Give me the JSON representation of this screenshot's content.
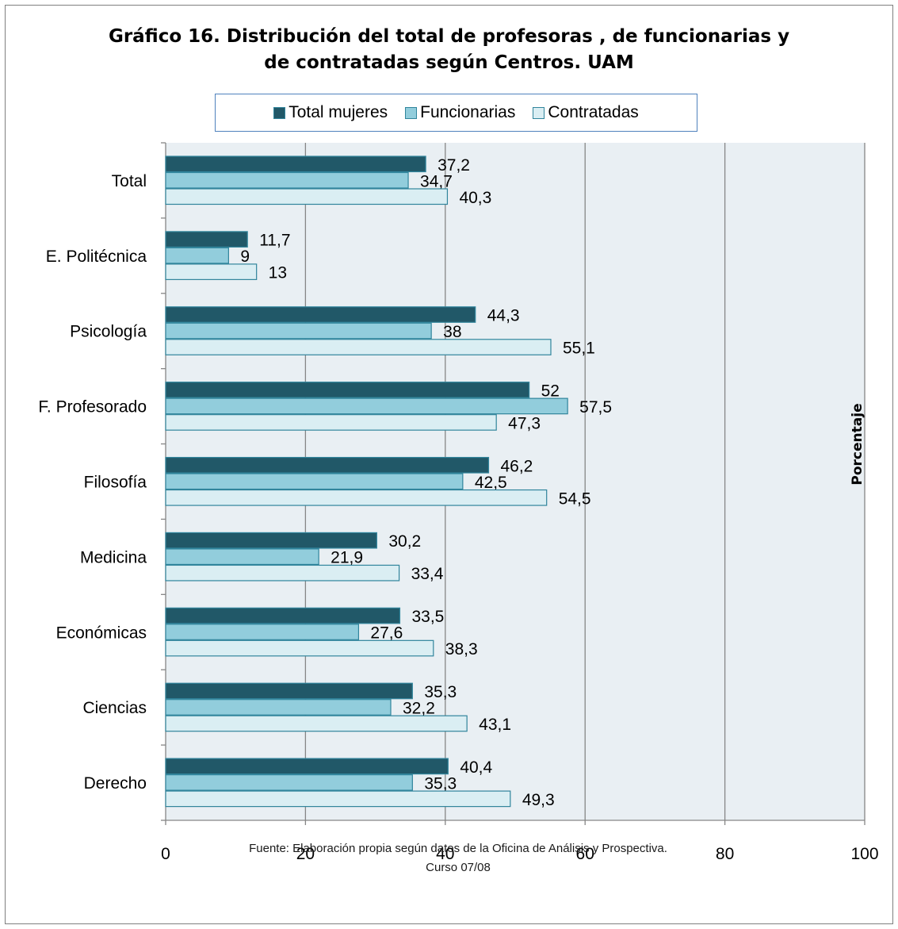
{
  "chart_data": {
    "type": "bar",
    "orientation": "horizontal",
    "title_lines": [
      "Gráfico 16. Distribución del total de profesoras , de  funcionarias y",
      "de contratadas según Centros. UAM"
    ],
    "ylabel": "Porcentaje",
    "categories": [
      "Total",
      "E. Politécnica",
      "Psicología",
      "F. Profesorado",
      "Filosofía",
      "Medicina",
      "Económicas",
      "Ciencias",
      "Derecho"
    ],
    "series": [
      {
        "name": "Total mujeres",
        "color": "#215868",
        "values": [
          37.2,
          11.7,
          44.3,
          52,
          46.2,
          30.2,
          33.5,
          35.3,
          40.4
        ],
        "labels": [
          "37,2",
          "11,7",
          "44,3",
          "52",
          "46,2",
          "30,2",
          "33,5",
          "35,3",
          "40,4"
        ]
      },
      {
        "name": "Funcionarias",
        "color": "#92cddc",
        "values": [
          34.7,
          9,
          38,
          57.5,
          42.5,
          21.9,
          27.6,
          32.2,
          35.3
        ],
        "labels": [
          "34,7",
          "9",
          "38",
          "57,5",
          "42,5",
          "21,9",
          "27,6",
          "32,2",
          "35,3"
        ]
      },
      {
        "name": "Contratadas",
        "color": "#daeef3",
        "values": [
          40.3,
          13,
          55.1,
          47.3,
          54.5,
          33.4,
          38.3,
          43.1,
          49.3
        ],
        "labels": [
          "40,3",
          "13",
          "55,1",
          "47,3",
          "54,5",
          "33,4",
          "38,3",
          "43,1",
          "49,3"
        ]
      }
    ],
    "xlim": [
      0,
      100
    ],
    "xticks": [
      0,
      20,
      40,
      60,
      80,
      100
    ],
    "grid": true,
    "legend_position": "top",
    "plot_background": "#e9eff3",
    "bar_border": "#31859c",
    "source_lines": [
      "Fuente: Elaboración propia según datos de la Oficina de Análisis y Prospectiva.",
      "Curso 07/08"
    ]
  }
}
